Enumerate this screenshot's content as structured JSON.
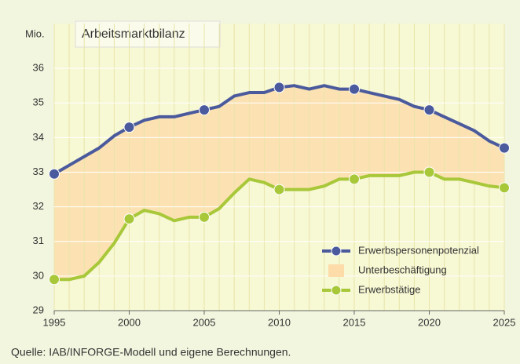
{
  "chart_data": {
    "type": "line",
    "title": "Arbeitsmarktbilanz",
    "y_label": "Mio.",
    "source": "Quelle:  IAB/INFORGE-Modell und eigene Berechnungen.",
    "x": [
      1995,
      1996,
      1997,
      1998,
      1999,
      2000,
      2001,
      2002,
      2003,
      2004,
      2005,
      2006,
      2007,
      2008,
      2009,
      2010,
      2011,
      2012,
      2013,
      2014,
      2015,
      2016,
      2017,
      2018,
      2019,
      2020,
      2021,
      2022,
      2023,
      2024,
      2025
    ],
    "series": [
      {
        "name": "Erwerbspersonenpotenzial",
        "color": "#4a5a9c",
        "values": [
          32.95,
          33.2,
          33.45,
          33.7,
          34.05,
          34.3,
          34.5,
          34.6,
          34.6,
          34.7,
          34.8,
          34.9,
          35.2,
          35.3,
          35.3,
          35.45,
          35.5,
          35.4,
          35.5,
          35.4,
          35.4,
          35.3,
          35.2,
          35.1,
          34.9,
          34.8,
          34.6,
          34.4,
          34.2,
          33.9,
          33.7
        ]
      },
      {
        "name": "Erwerbstätige",
        "color": "#a8c83a",
        "values": [
          29.9,
          29.9,
          30.0,
          30.4,
          30.95,
          31.65,
          31.9,
          31.8,
          31.6,
          31.7,
          31.7,
          31.95,
          32.4,
          32.8,
          32.7,
          32.5,
          32.5,
          32.5,
          32.6,
          32.8,
          32.8,
          32.9,
          32.9,
          32.9,
          33.0,
          33.0,
          32.8,
          32.8,
          32.7,
          32.6,
          32.55
        ]
      }
    ],
    "band": {
      "name": "Unterbeschäftigung",
      "color": "#fddcaa"
    },
    "xlim": [
      1995,
      2025
    ],
    "xticks": [
      1995,
      2000,
      2005,
      2010,
      2015,
      2020,
      2025
    ],
    "ylim": [
      29,
      37
    ],
    "yticks": [
      29,
      30,
      31,
      32,
      33,
      34,
      35,
      36
    ],
    "grid": true,
    "legend": "lower right"
  }
}
